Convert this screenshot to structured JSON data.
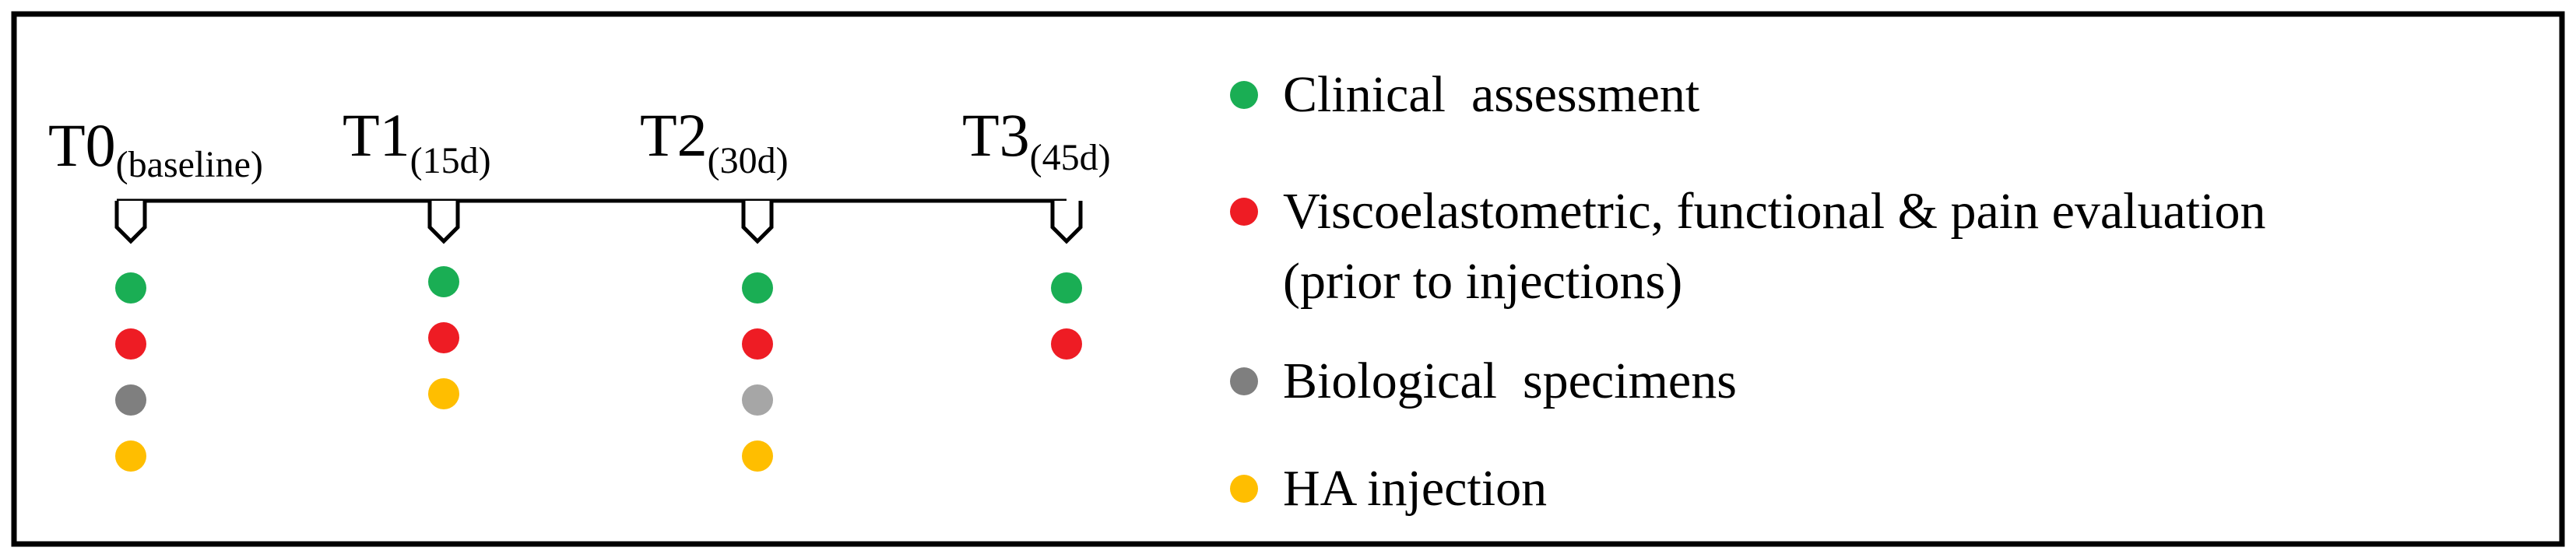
{
  "colors": {
    "clinical": "#1aae54",
    "viscoelastometric": "#ee1c24",
    "biological": "#7f7f7f",
    "biological_light": "#a6a6a6",
    "ha_injection": "#ffbe00",
    "line": "#000000"
  },
  "timepoints": [
    {
      "label": "T0",
      "sub": "(baseline)",
      "markers": [
        "clinical",
        "viscoelastometric",
        "biological",
        "ha_injection"
      ]
    },
    {
      "label": "T1",
      "sub": "(15d)",
      "markers": [
        "clinical",
        "viscoelastometric",
        "ha_injection"
      ]
    },
    {
      "label": "T2",
      "sub": "(30d)",
      "markers": [
        "clinical",
        "viscoelastometric",
        "biological_light",
        "ha_injection"
      ]
    },
    {
      "label": "T3",
      "sub": "(45d)",
      "markers": [
        "clinical",
        "viscoelastometric"
      ]
    }
  ],
  "legend": [
    {
      "key": "clinical",
      "lines": [
        "Clinical  assessment"
      ]
    },
    {
      "key": "viscoelastometric",
      "lines": [
        "Viscoelastometric, functional & pain evaluation",
        "(prior to injections)"
      ]
    },
    {
      "key": "biological",
      "lines": [
        "Biological  specimens"
      ]
    },
    {
      "key": "ha_injection",
      "lines": [
        "HA injection"
      ]
    }
  ]
}
